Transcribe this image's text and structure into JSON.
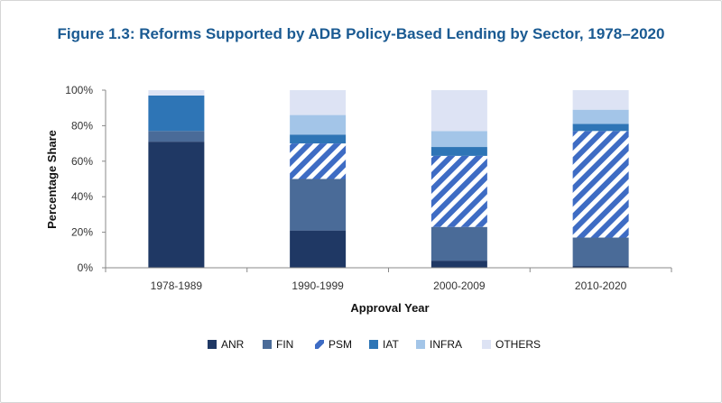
{
  "chart_data": {
    "type": "bar",
    "stacked": true,
    "title": "Figure 1.3: Reforms Supported by ADB Policy-Based Lending by Sector, 1978–2020",
    "xlabel": "Approval Year",
    "ylabel": "Percentage Share",
    "ylim": [
      0,
      100
    ],
    "yticks": [
      "0%",
      "20%",
      "40%",
      "60%",
      "80%",
      "100%"
    ],
    "yticks_values": [
      0,
      20,
      40,
      60,
      80,
      100
    ],
    "categories": [
      "1978-1989",
      "1990-1999",
      "2000-2009",
      "2010-2020"
    ],
    "legend_position": "bottom",
    "grid": false,
    "series": [
      {
        "name": "ANR",
        "color": "#1f3864",
        "pattern": "solid",
        "values": [
          71,
          21,
          4,
          1
        ]
      },
      {
        "name": "FIN",
        "color": "#4a6b98",
        "pattern": "solid",
        "values": [
          6,
          29,
          19,
          16
        ]
      },
      {
        "name": "PSM",
        "color": "#3e6cc4",
        "pattern": "hatch",
        "values": [
          0,
          20,
          40,
          60
        ]
      },
      {
        "name": "IAT",
        "color": "#2e75b6",
        "pattern": "solid",
        "values": [
          20,
          5,
          5,
          4
        ]
      },
      {
        "name": "INFRA",
        "color": "#a3c5e8",
        "pattern": "solid",
        "values": [
          0,
          11,
          9,
          8
        ]
      },
      {
        "name": "OTHERS",
        "color": "#dde3f4",
        "pattern": "solid",
        "values": [
          3,
          14,
          23,
          11
        ]
      }
    ]
  }
}
